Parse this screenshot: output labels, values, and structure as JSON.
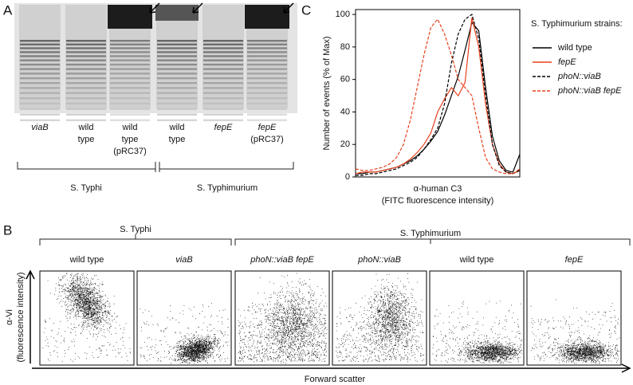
{
  "panel_labels": [
    "A",
    "B",
    "C"
  ],
  "panel_a": {
    "lanes": [
      [
        "viaB"
      ],
      [
        "wild",
        "type"
      ],
      [
        "wild",
        "type",
        "(pRC37)"
      ],
      [
        "wild",
        "type"
      ],
      [
        "fepE"
      ],
      [
        "fepE",
        "(pRC37)"
      ]
    ],
    "groups": [
      "S. Typhi",
      "S. Typhimurium"
    ]
  },
  "panel_b": {
    "groups": [
      "S. Typhi",
      "S. Typhimurium"
    ],
    "columns": [
      "wild type",
      "viaB",
      "phoN::viaB fepE",
      "phoN::viaB",
      "wild type",
      "fepE"
    ],
    "y_label": [
      "α-Vi",
      "(fluorescence intensity)"
    ],
    "x_label": "Forward scatter"
  },
  "chart_data": {
    "type": "line",
    "y_label": "Number of events (% of Max)",
    "x_label": [
      "α-human C3",
      "(FITC fluorescence intensity)"
    ],
    "legend_title": "S. Typhimurium strains:",
    "categories": [
      null,
      null,
      null,
      null,
      null,
      null,
      null,
      null,
      null,
      null,
      null,
      null,
      null,
      null,
      null,
      null,
      null,
      null,
      null,
      null,
      null,
      null,
      null,
      null,
      null
    ],
    "ylim": [
      0,
      103
    ],
    "yticks": [
      0,
      20,
      40,
      60,
      80,
      100
    ],
    "series": [
      {
        "name": "wild type",
        "color": "#000000",
        "dash": false,
        "values": [
          2,
          2,
          3,
          3,
          4,
          5,
          6,
          8,
          10,
          13,
          17,
          22,
          28,
          38,
          50,
          62,
          78,
          95,
          90,
          55,
          25,
          10,
          4,
          3,
          14
        ]
      },
      {
        "name": "fepE",
        "color": "#e8401c",
        "dash": false,
        "values": [
          2,
          3,
          3,
          3,
          4,
          5,
          6,
          8,
          11,
          15,
          20,
          27,
          40,
          48,
          55,
          50,
          58,
          98,
          80,
          45,
          20,
          8,
          3,
          2,
          4
        ]
      },
      {
        "name": "phoN::viaB",
        "color": "#000000",
        "dash": true,
        "values": [
          1,
          1,
          2,
          2,
          3,
          4,
          5,
          7,
          9,
          12,
          17,
          23,
          30,
          45,
          70,
          88,
          97,
          100,
          85,
          50,
          20,
          7,
          3,
          2,
          4
        ]
      },
      {
        "name": "phoN::viaB fepE",
        "color": "#e8401c",
        "dash": true,
        "values": [
          5,
          4,
          4,
          5,
          6,
          8,
          12,
          20,
          35,
          55,
          75,
          92,
          97,
          88,
          75,
          60,
          55,
          50,
          30,
          12,
          5,
          3,
          2,
          2,
          5
        ]
      }
    ]
  }
}
